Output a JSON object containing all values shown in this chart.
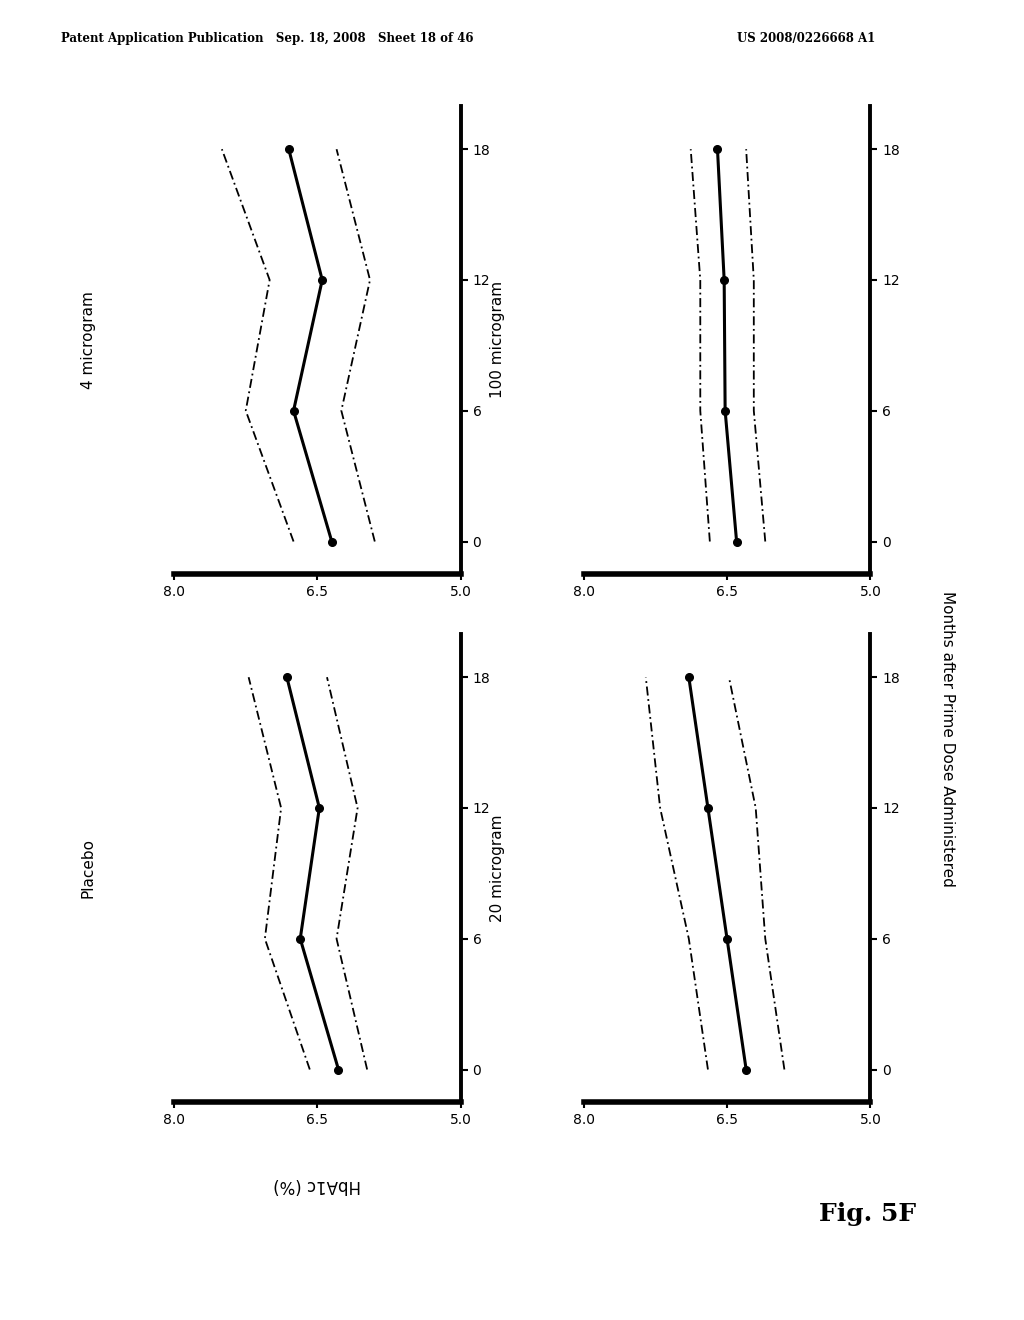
{
  "header_left": "Patent Application Publication   Sep. 18, 2008   Sheet 18 of 46",
  "header_right": "US 2008/0226668 A1",
  "fig_label": "Fig. 5F",
  "ylabel": "HbA1c (%)",
  "xlabel": "Months after Prime Dose Administered",
  "subplots": [
    {
      "title": "4 microgram",
      "months": [
        0,
        6,
        12,
        18
      ],
      "mean": [
        6.35,
        6.75,
        6.45,
        6.8
      ],
      "upper_ci": [
        6.75,
        7.25,
        7.0,
        7.5
      ],
      "lower_ci": [
        5.9,
        6.25,
        5.95,
        6.3
      ]
    },
    {
      "title": "100 microgram",
      "months": [
        0,
        6,
        12,
        18
      ],
      "mean": [
        6.4,
        6.52,
        6.53,
        6.6
      ],
      "upper_ci": [
        6.68,
        6.78,
        6.78,
        6.88
      ],
      "lower_ci": [
        6.1,
        6.22,
        6.22,
        6.3
      ]
    },
    {
      "title": "Placebo",
      "months": [
        0,
        6,
        12,
        18
      ],
      "mean": [
        6.28,
        6.68,
        6.48,
        6.82
      ],
      "upper_ci": [
        6.58,
        7.05,
        6.88,
        7.22
      ],
      "lower_ci": [
        5.98,
        6.3,
        6.08,
        6.4
      ]
    },
    {
      "title": "20 microgram",
      "months": [
        0,
        6,
        12,
        18
      ],
      "mean": [
        6.3,
        6.5,
        6.7,
        6.9
      ],
      "upper_ci": [
        6.7,
        6.9,
        7.2,
        7.35
      ],
      "lower_ci": [
        5.9,
        6.1,
        6.2,
        6.48
      ]
    }
  ],
  "xlim_left": 8.0,
  "xlim_right": 5.0,
  "xticks": [
    8.0,
    6.5,
    5.0
  ],
  "xticklabels": [
    "8.0",
    "6.5",
    "5.0"
  ],
  "yticks": [
    0,
    6,
    12,
    18
  ],
  "yticklabels": [
    "0",
    "6",
    "12",
    "18"
  ],
  "ylim_bottom": -1.5,
  "ylim_top": 20,
  "background": "#ffffff"
}
